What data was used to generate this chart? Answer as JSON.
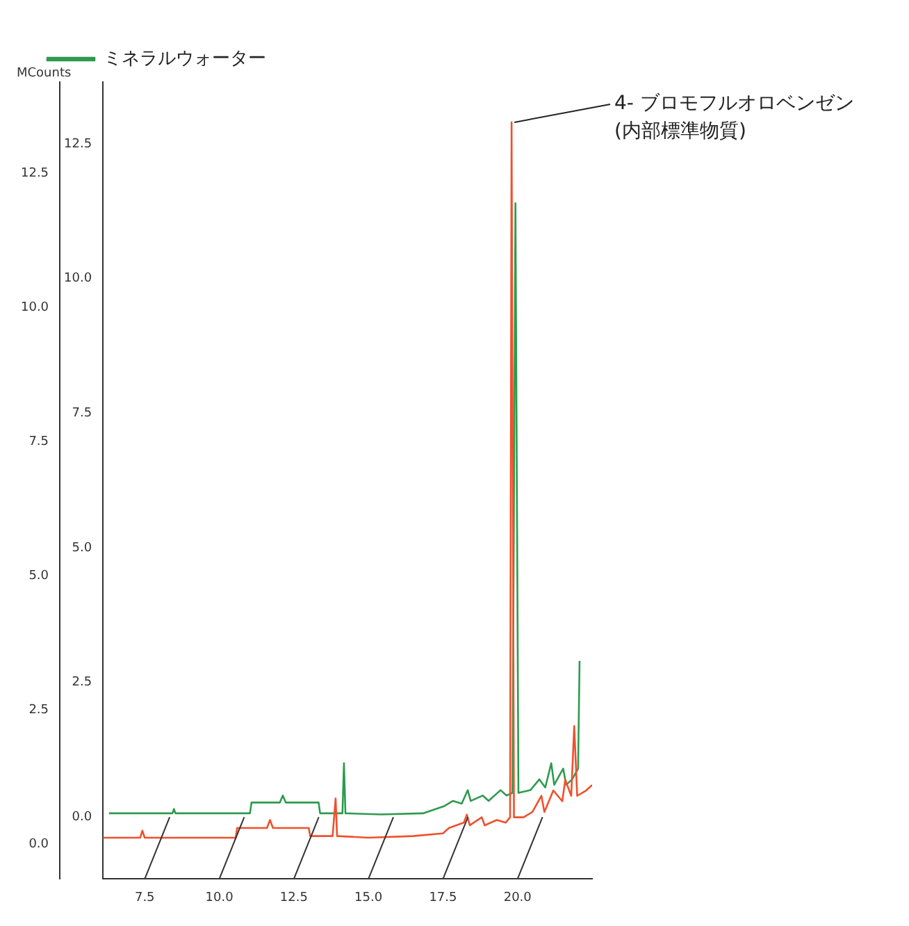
{
  "chart_data": {
    "type": "line",
    "ylabel": "MCounts",
    "legend": "top",
    "grid": false,
    "marker": "none",
    "line_style": "solid",
    "xlim": [
      6.1,
      22.5
    ],
    "xticks": [
      7.5,
      {
        "value": 10,
        "label": "10.0"
      },
      12.5,
      {
        "value": 15,
        "label": "15.0"
      },
      17.5,
      {
        "value": 20,
        "label": "20.0"
      }
    ],
    "ylim": [
      -0.65,
      14.2
    ],
    "yticks": [
      {
        "value": 0,
        "label": "0.0"
      },
      2.5,
      {
        "value": 5,
        "label": "5.0"
      },
      7.5,
      {
        "value": 10,
        "label": "10.0"
      },
      12.5
    ],
    "y2lim": [
      -1.15,
      13.65
    ],
    "y2ticks": [
      {
        "value": 0,
        "label": "0.0"
      },
      2.5,
      {
        "value": 5,
        "label": "5.0"
      },
      7.5,
      {
        "value": 10,
        "label": "10.0"
      },
      12.5
    ],
    "annotations": [
      {
        "text": "4- ブロモフルオロベンゼン\n(内部標準物質)",
        "x": 19.8,
        "y": 13.45
      }
    ],
    "series": [
      {
        "color": "#f0502d",
        "x": [
          6.1,
          7.35,
          7.42,
          7.5,
          9.9,
          10.55,
          10.6,
          11.6,
          11.7,
          11.8,
          13.0,
          13.05,
          13.8,
          13.9,
          13.95,
          15.0,
          16.5,
          17.5,
          17.7,
          18.2,
          18.3,
          18.4,
          18.8,
          18.9,
          19.3,
          19.6,
          19.75,
          19.8,
          19.88,
          20.2,
          20.5,
          20.8,
          20.9,
          21.2,
          21.5,
          21.6,
          21.8,
          21.9,
          22.0,
          22.3,
          22.5
        ],
        "values": [
          0.12,
          0.12,
          0.25,
          0.12,
          0.12,
          0.12,
          0.3,
          0.3,
          0.45,
          0.3,
          0.3,
          0.15,
          0.15,
          0.85,
          0.15,
          0.12,
          0.15,
          0.2,
          0.3,
          0.4,
          0.55,
          0.35,
          0.5,
          0.35,
          0.45,
          0.4,
          0.5,
          13.45,
          0.5,
          0.5,
          0.6,
          0.9,
          0.6,
          1.0,
          0.8,
          1.2,
          0.9,
          2.2,
          0.9,
          1.0,
          1.1
        ]
      },
      {
        "name": "ミネラルウォーター",
        "color": "#2e9a4e",
        "axis": "y2",
        "x": [
          6.3,
          8.43,
          8.48,
          8.53,
          10.83,
          11.03,
          11.08,
          12.03,
          12.13,
          12.23,
          13.33,
          13.38,
          14.13,
          14.18,
          14.23,
          15.43,
          16.83,
          17.53,
          17.83,
          18.13,
          18.33,
          18.43,
          18.83,
          19.03,
          19.43,
          19.63,
          19.83,
          19.93,
          20.03,
          20.43,
          20.73,
          20.93,
          21.13,
          21.23,
          21.53,
          21.63,
          21.83,
          22.03,
          22.08
        ],
        "values": [
          0.07,
          0.07,
          0.15,
          0.07,
          0.07,
          0.07,
          0.27,
          0.27,
          0.4,
          0.27,
          0.27,
          0.07,
          0.07,
          1.0,
          0.07,
          0.05,
          0.07,
          0.2,
          0.3,
          0.25,
          0.5,
          0.3,
          0.4,
          0.3,
          0.5,
          0.4,
          0.45,
          11.4,
          0.45,
          0.5,
          0.7,
          0.55,
          1.0,
          0.6,
          0.9,
          0.6,
          0.7,
          0.9,
          2.9
        ]
      }
    ]
  }
}
